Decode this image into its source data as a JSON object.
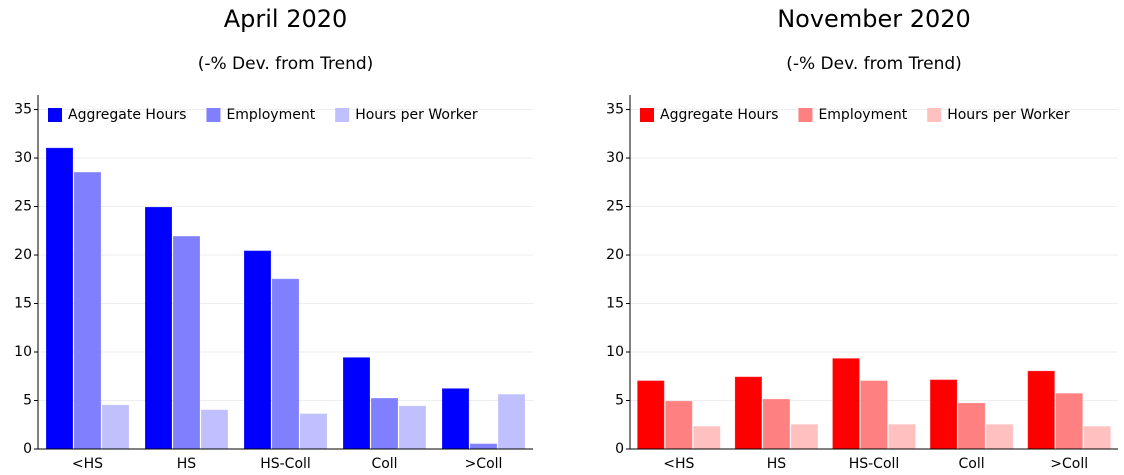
{
  "chart_data": [
    {
      "type": "bar",
      "title": "April 2020",
      "subtitle": "(-% Dev. from Trend)",
      "categories": [
        "<HS",
        "HS",
        "HS-Coll",
        "Coll",
        ">Coll"
      ],
      "series": [
        {
          "name": "Aggregate Hours",
          "color": "#0000ff",
          "values": [
            31.0,
            24.9,
            20.4,
            9.4,
            6.2
          ]
        },
        {
          "name": "Employment",
          "color": "#8080ff",
          "values": [
            28.5,
            21.9,
            17.5,
            5.2,
            0.5
          ]
        },
        {
          "name": "Hours per Worker",
          "color": "#c0c0ff",
          "values": [
            4.5,
            4.0,
            3.6,
            4.4,
            5.6
          ]
        }
      ],
      "ylim": [
        0,
        36.5
      ],
      "yticks": [
        0,
        5,
        10,
        15,
        20,
        25,
        30,
        35
      ],
      "grid": true,
      "legend": "top"
    },
    {
      "type": "bar",
      "title": "November 2020",
      "subtitle": "(-% Dev. from Trend)",
      "categories": [
        "<HS",
        "HS",
        "HS-Coll",
        "Coll",
        ">Coll"
      ],
      "series": [
        {
          "name": "Aggregate Hours",
          "color": "#ff0000",
          "values": [
            7.0,
            7.4,
            9.3,
            7.1,
            8.0
          ]
        },
        {
          "name": "Employment",
          "color": "#ff8080",
          "values": [
            4.9,
            5.1,
            7.0,
            4.7,
            5.7
          ]
        },
        {
          "name": "Hours per Worker",
          "color": "#ffc0c0",
          "values": [
            2.3,
            2.5,
            2.5,
            2.5,
            2.3
          ]
        }
      ],
      "ylim": [
        0,
        36.5
      ],
      "yticks": [
        0,
        5,
        10,
        15,
        20,
        25,
        30,
        35
      ],
      "grid": true,
      "legend": "top"
    }
  ]
}
